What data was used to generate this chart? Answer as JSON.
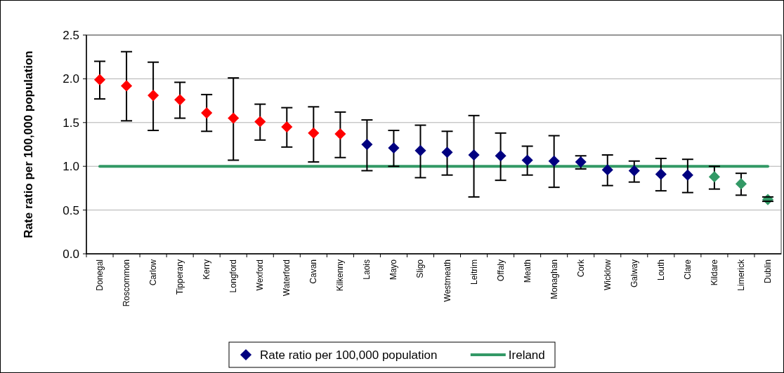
{
  "chart_data": {
    "type": "scatter",
    "ylabel": "Rate ratio per 100,000 population",
    "categories": [
      "Donegal",
      "Roscommon",
      "Carlow",
      "Tipperary",
      "Kerry",
      "Longford",
      "Wexford",
      "Waterford",
      "Cavan",
      "Kilkenny",
      "Laois",
      "Mayo",
      "Sligo",
      "Westmeath",
      "Leitrim",
      "Offaly",
      "Meath",
      "Monaghan",
      "Cork",
      "Wicklow",
      "Galway",
      "Louth",
      "Clare",
      "Kildare",
      "Limerick",
      "Dublin"
    ],
    "series": [
      {
        "name": "Rate ratio per 100,000 population",
        "type": "scatter",
        "marker": "diamond",
        "color": "#000080",
        "colors": [
          "#ff0000",
          "#ff0000",
          "#ff0000",
          "#ff0000",
          "#ff0000",
          "#ff0000",
          "#ff0000",
          "#ff0000",
          "#ff0000",
          "#ff0000",
          "#000080",
          "#000080",
          "#000080",
          "#000080",
          "#000080",
          "#000080",
          "#000080",
          "#000080",
          "#000080",
          "#000080",
          "#000080",
          "#000080",
          "#000080",
          "#339966",
          "#339966",
          "#339966"
        ],
        "values": [
          1.99,
          1.92,
          1.81,
          1.76,
          1.61,
          1.55,
          1.51,
          1.45,
          1.38,
          1.37,
          1.25,
          1.21,
          1.18,
          1.16,
          1.13,
          1.12,
          1.07,
          1.06,
          1.05,
          0.96,
          0.95,
          0.91,
          0.9,
          0.88,
          0.8,
          0.62
        ],
        "errors": [
          [
            1.77,
            2.2
          ],
          [
            1.52,
            2.31
          ],
          [
            1.41,
            2.19
          ],
          [
            1.55,
            1.96
          ],
          [
            1.4,
            1.82
          ],
          [
            1.07,
            2.01
          ],
          [
            1.3,
            1.71
          ],
          [
            1.22,
            1.67
          ],
          [
            1.05,
            1.68
          ],
          [
            1.1,
            1.62
          ],
          [
            0.95,
            1.53
          ],
          [
            1.0,
            1.41
          ],
          [
            0.87,
            1.47
          ],
          [
            0.9,
            1.4
          ],
          [
            0.65,
            1.58
          ],
          [
            0.84,
            1.38
          ],
          [
            0.9,
            1.23
          ],
          [
            0.76,
            1.35
          ],
          [
            0.97,
            1.12
          ],
          [
            0.78,
            1.13
          ],
          [
            0.82,
            1.06
          ],
          [
            0.72,
            1.09
          ],
          [
            0.7,
            1.08
          ],
          [
            0.74,
            1.0
          ],
          [
            0.67,
            0.92
          ],
          [
            0.6,
            0.65
          ]
        ]
      },
      {
        "name": "Ireland",
        "type": "line",
        "marker": "none",
        "color": "#339966",
        "values": [
          1,
          1,
          1,
          1,
          1,
          1,
          1,
          1,
          1,
          1,
          1,
          1,
          1,
          1,
          1,
          1,
          1,
          1,
          1,
          1,
          1,
          1,
          1,
          1,
          1,
          1
        ]
      }
    ],
    "ylim": [
      0,
      2.5
    ],
    "yticks": [
      {
        "value": 0,
        "label": "0.0"
      },
      {
        "value": 0.5,
        "label": "0.5"
      },
      {
        "value": 1,
        "label": "1.0"
      },
      {
        "value": 1.5,
        "label": "1.5"
      },
      {
        "value": 2,
        "label": "2.0"
      },
      {
        "value": 2.5,
        "label": "2.5"
      }
    ],
    "grid": "y",
    "legend": "bottom"
  }
}
